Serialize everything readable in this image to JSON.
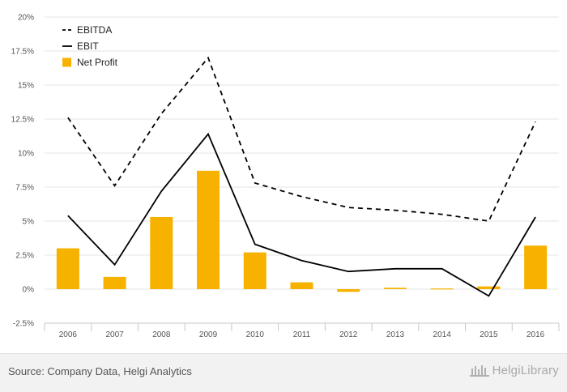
{
  "chart_data": {
    "type": "bar+line",
    "categories": [
      "2006",
      "2007",
      "2008",
      "2009",
      "2010",
      "2011",
      "2012",
      "2013",
      "2014",
      "2015",
      "2016"
    ],
    "ylim": [
      -2.5,
      20
    ],
    "yticks": [
      -2.5,
      0,
      2.5,
      5,
      7.5,
      10,
      12.5,
      15,
      17.5,
      20
    ],
    "ytick_labels": [
      "-2.5%",
      "0%",
      "2.5%",
      "5%",
      "7.5%",
      "10%",
      "12.5%",
      "15%",
      "17.5%",
      "20%"
    ],
    "grid": true,
    "legend_position": "top-left",
    "series": [
      {
        "name": "EBITDA",
        "type": "line",
        "style": "dashed",
        "color": "#000000",
        "values": [
          12.6,
          7.6,
          12.9,
          17.0,
          7.8,
          6.8,
          6.0,
          5.8,
          5.5,
          5.0,
          12.3
        ]
      },
      {
        "name": "EBIT",
        "type": "line",
        "style": "solid",
        "color": "#000000",
        "values": [
          5.4,
          1.8,
          7.2,
          11.4,
          3.3,
          2.1,
          1.3,
          1.5,
          1.5,
          -0.5,
          5.3
        ]
      },
      {
        "name": "Net Profit",
        "type": "bar",
        "color": "#f7b200",
        "values": [
          3.0,
          0.9,
          5.3,
          8.7,
          2.7,
          0.5,
          -0.2,
          0.1,
          0.05,
          0.2,
          3.2
        ]
      }
    ]
  },
  "footer": {
    "source": "Source: Company Data, Helgi Analytics",
    "logo_text": "HelgiLibrary"
  }
}
